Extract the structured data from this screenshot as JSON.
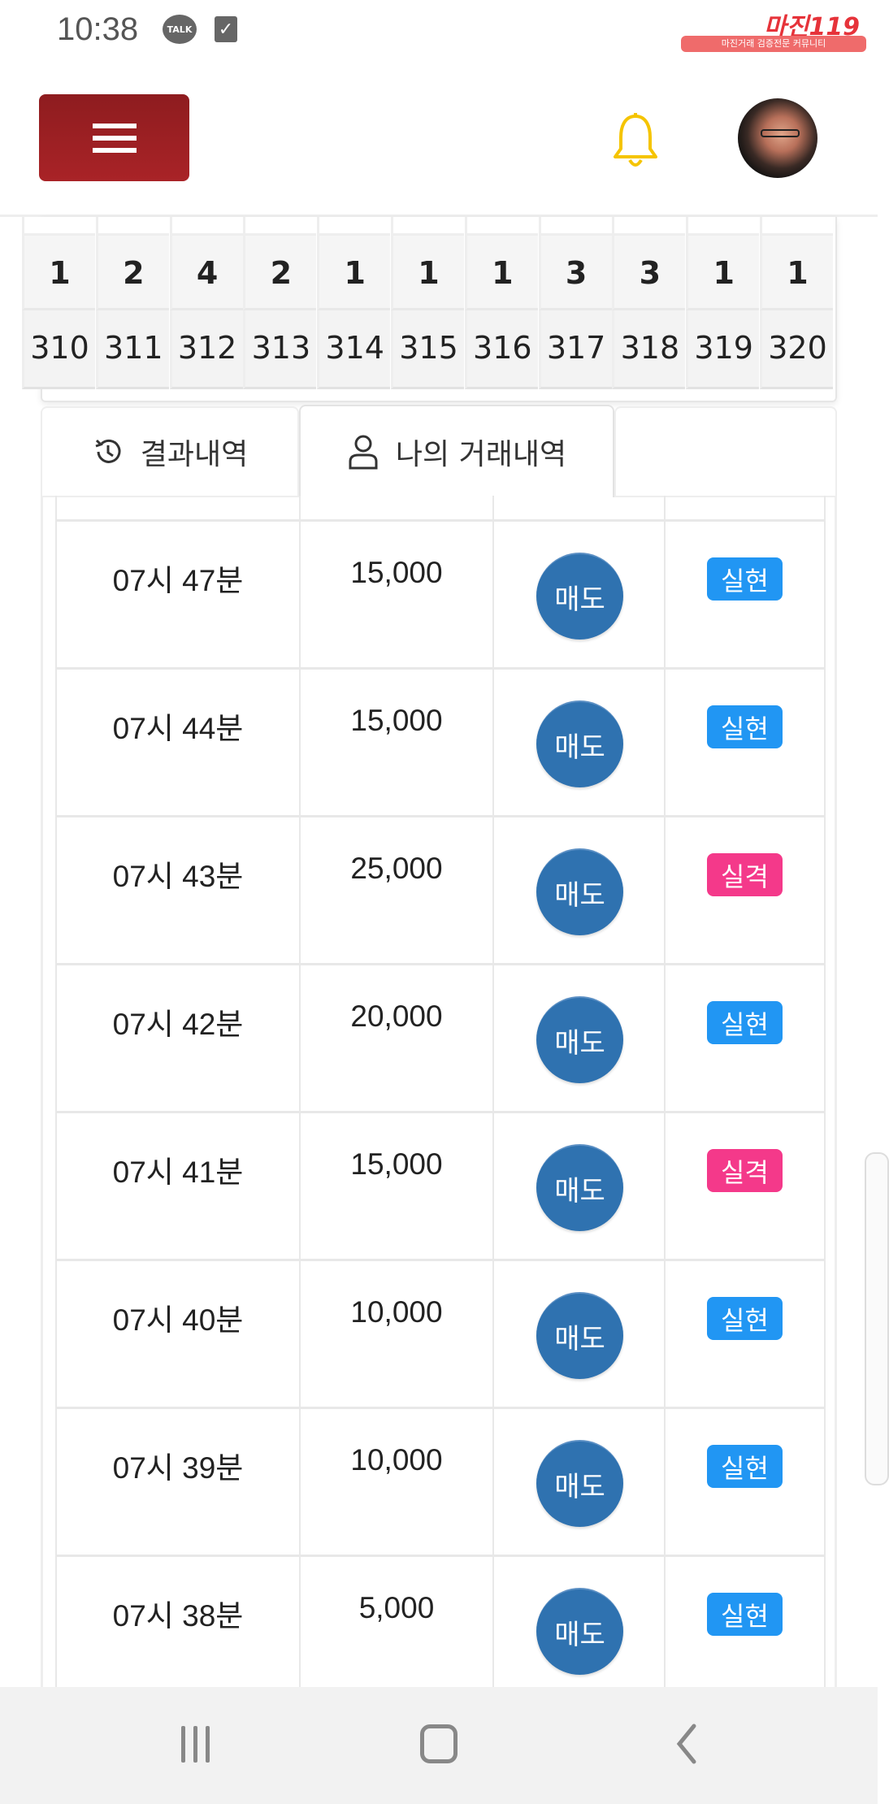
{
  "status_bar": {
    "time": "10:38",
    "talk_icon_label": "TALK",
    "icons": [
      "kakaotalk-icon",
      "checkbox-icon"
    ]
  },
  "watermark": {
    "title": "마진",
    "suffix": "119",
    "subtitle": "마진거래 검증전문 커뮤니티"
  },
  "header": {
    "menu_icon": "hamburger-icon",
    "bell_icon": "bell-icon",
    "bell_color": "#f5c400",
    "menu_color": "#a02226"
  },
  "top_table": {
    "counts": [
      "1",
      "2",
      "4",
      "2",
      "1",
      "1",
      "1",
      "3",
      "3",
      "1",
      "1"
    ],
    "rounds": [
      "310",
      "311",
      "312",
      "313",
      "314",
      "315",
      "316",
      "317",
      "318",
      "319",
      "320"
    ]
  },
  "tabs": [
    {
      "label": "결과내역",
      "icon": "history-icon",
      "active": false
    },
    {
      "label": "나의 거래내역",
      "icon": "user-icon",
      "active": true
    }
  ],
  "colors": {
    "sell_button": "#2f72b0",
    "success_badge": "#2196f3",
    "fail_badge": "#f4398a"
  },
  "trades": [
    {
      "time": "07시 47분",
      "amount": "15,000",
      "type": "매도",
      "result": "실현",
      "status": "success"
    },
    {
      "time": "07시 44분",
      "amount": "15,000",
      "type": "매도",
      "result": "실현",
      "status": "success"
    },
    {
      "time": "07시 43분",
      "amount": "25,000",
      "type": "매도",
      "result": "실격",
      "status": "fail"
    },
    {
      "time": "07시 42분",
      "amount": "20,000",
      "type": "매도",
      "result": "실현",
      "status": "success"
    },
    {
      "time": "07시 41분",
      "amount": "15,000",
      "type": "매도",
      "result": "실격",
      "status": "fail"
    },
    {
      "time": "07시 40분",
      "amount": "10,000",
      "type": "매도",
      "result": "실현",
      "status": "success"
    },
    {
      "time": "07시 39분",
      "amount": "10,000",
      "type": "매도",
      "result": "실현",
      "status": "success"
    },
    {
      "time": "07시 38분",
      "amount": "5,000",
      "type": "매도",
      "result": "실현",
      "status": "success"
    }
  ],
  "nav_bar": {
    "icons": [
      "recent-apps-icon",
      "home-icon",
      "back-icon"
    ]
  }
}
